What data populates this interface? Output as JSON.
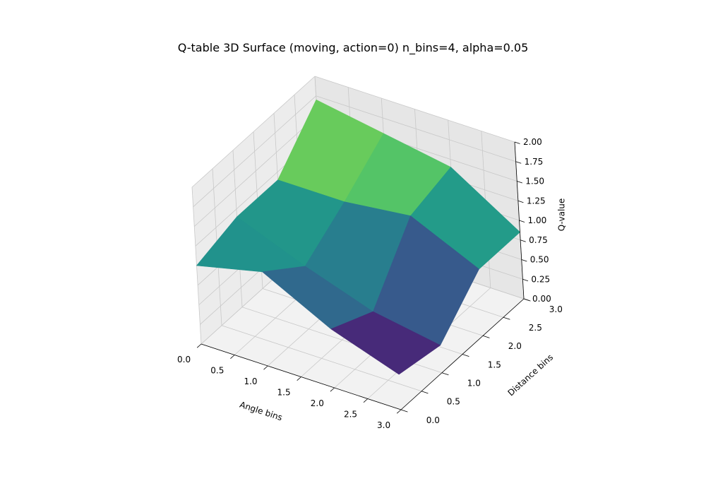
{
  "chart_data": {
    "type": "surface3d",
    "title": "Q-table 3D Surface (moving, action=0) n_bins=4, alpha=0.05",
    "xlabel": "Angle bins",
    "ylabel": "Distance bins",
    "zlabel": "Q-value",
    "xlim": [
      0,
      3
    ],
    "ylim": [
      0,
      3
    ],
    "zlim": [
      0,
      2
    ],
    "xticks": [
      "0.0",
      "0.5",
      "1.0",
      "1.5",
      "2.0",
      "2.5",
      "3.0"
    ],
    "yticks": [
      "0.0",
      "0.5",
      "1.0",
      "1.5",
      "2.0",
      "2.5",
      "3.0"
    ],
    "zticks": [
      "0.00",
      "0.25",
      "0.50",
      "0.75",
      "1.00",
      "1.25",
      "1.50",
      "1.75",
      "2.00"
    ],
    "colormap": "viridis",
    "grid": true,
    "x": [
      0,
      1,
      2,
      3
    ],
    "y": [
      0,
      1,
      2,
      3
    ],
    "z": [
      [
        1.0,
        1.15,
        1.15,
        1.7
      ],
      [
        1.2,
        0.8,
        1.15,
        1.55
      ],
      [
        0.75,
        0.5,
        1.25,
        1.4
      ],
      [
        0.45,
        0.35,
        0.85,
        0.85
      ]
    ]
  }
}
